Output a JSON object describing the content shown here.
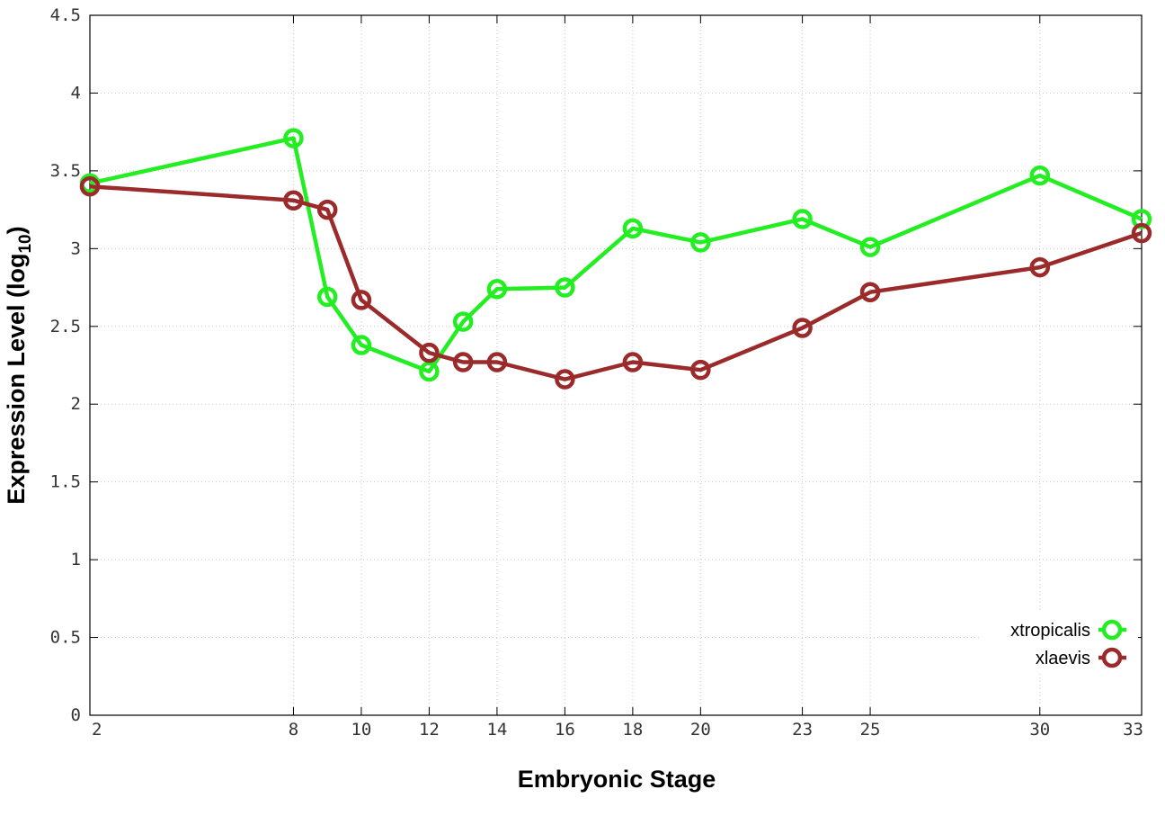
{
  "chart_data": {
    "type": "line",
    "xlabel": "Embryonic Stage",
    "ylabel": "Expression Level (log",
    "ylabel_subscript": "10",
    "ylabel_suffix": ")",
    "xlim": [
      2,
      33
    ],
    "ylim": [
      0,
      4.5
    ],
    "x_ticks": [
      2,
      8,
      10,
      12,
      14,
      16,
      18,
      20,
      23,
      25,
      30,
      33
    ],
    "y_ticks": [
      0,
      0.5,
      1,
      1.5,
      2,
      2.5,
      3,
      3.5,
      4,
      4.5
    ],
    "y_tick_labels": [
      "0",
      "0.5",
      "1",
      "1.5",
      "2",
      "2.5",
      "3",
      "3.5",
      "4",
      "4.5"
    ],
    "grid": true,
    "legend_position": "bottom-right",
    "series": [
      {
        "name": "xtropicalis",
        "color": "#22ee22",
        "points": [
          [
            2,
            3.42
          ],
          [
            8,
            3.71
          ],
          [
            9,
            2.69
          ],
          [
            10,
            2.38
          ],
          [
            12,
            2.21
          ],
          [
            13,
            2.53
          ],
          [
            14,
            2.74
          ],
          [
            16,
            2.75
          ],
          [
            18,
            3.13
          ],
          [
            20,
            3.04
          ],
          [
            23,
            3.19
          ],
          [
            25,
            3.01
          ],
          [
            30,
            3.47
          ],
          [
            33,
            3.19
          ]
        ]
      },
      {
        "name": "xlaevis",
        "color": "#9b2a2a",
        "points": [
          [
            2,
            3.4
          ],
          [
            8,
            3.31
          ],
          [
            9,
            3.25
          ],
          [
            10,
            2.67
          ],
          [
            12,
            2.33
          ],
          [
            13,
            2.27
          ],
          [
            14,
            2.27
          ],
          [
            16,
            2.16
          ],
          [
            18,
            2.27
          ],
          [
            20,
            2.22
          ],
          [
            23,
            2.49
          ],
          [
            25,
            2.72
          ],
          [
            30,
            2.88
          ],
          [
            33,
            3.1
          ]
        ]
      }
    ]
  }
}
